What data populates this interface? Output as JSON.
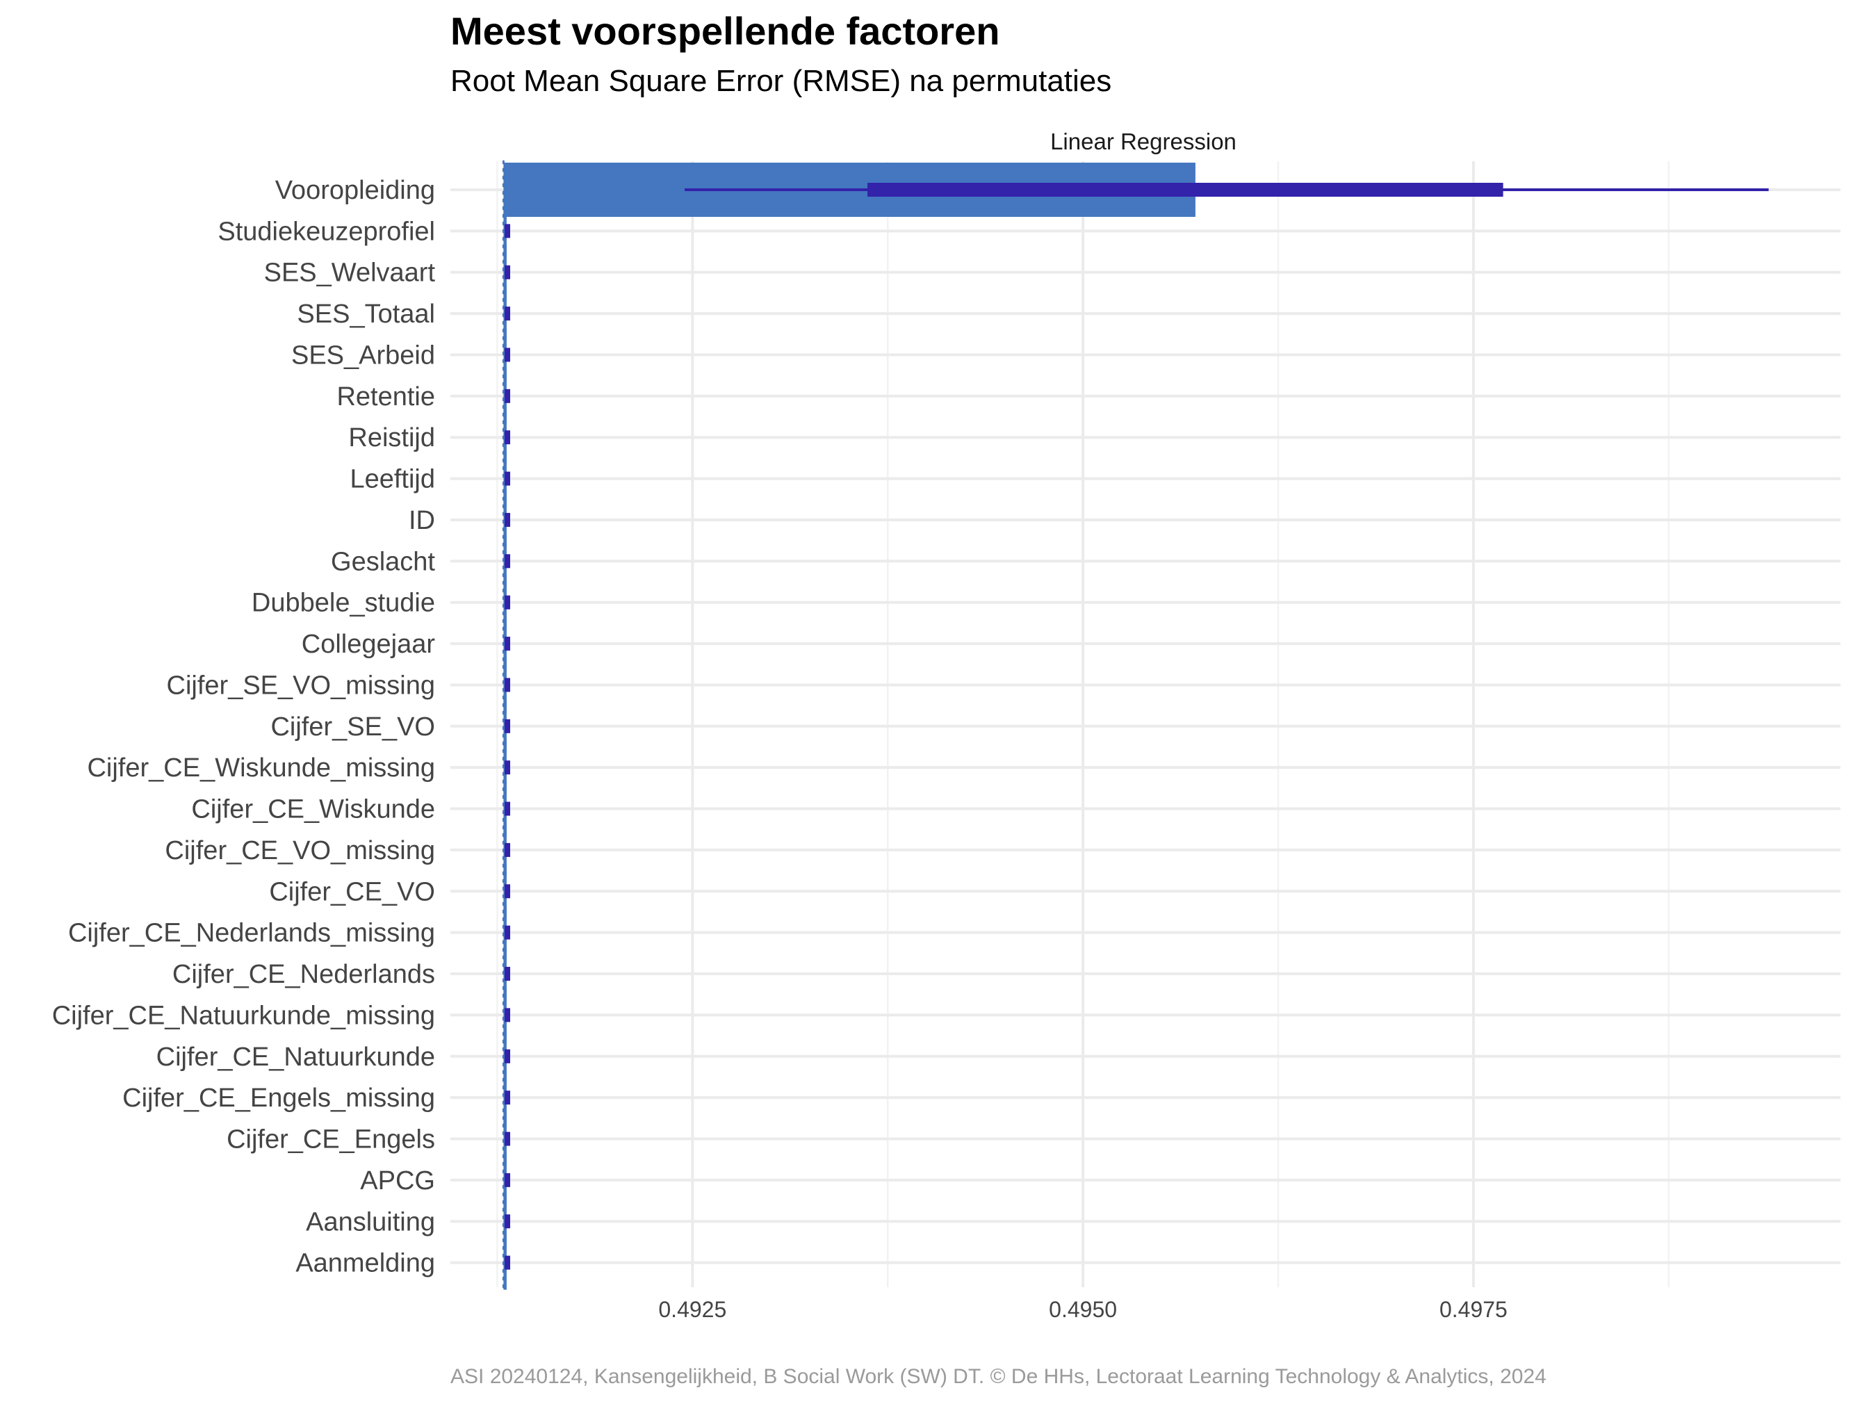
{
  "chart_data": {
    "type": "bar",
    "title": "Meest voorspellende factoren",
    "subtitle": "Root Mean Square Error (RMSE) na permutaties",
    "caption": "ASI 20240124, Kansengelijkheid, B Social Work (SW) DT. © De HHs, Lectoraat Learning Technology & Analytics, 2024",
    "facet": "Linear Regression",
    "xlim": [
      0.49095,
      0.49985
    ],
    "x_ticks": [
      0.4925,
      0.495,
      0.4975
    ],
    "x_tick_labels": [
      "0.4925",
      "0.4950",
      "0.4975"
    ],
    "baseline": 0.49129,
    "grid": true,
    "categories": [
      "Vooropleiding",
      "Studiekeuzeprofiel",
      "SES_Welvaart",
      "SES_Totaal",
      "SES_Arbeid",
      "Retentie",
      "Reistijd",
      "Leeftijd",
      "ID",
      "Geslacht",
      "Dubbele_studie",
      "Collegejaar",
      "Cijfer_SE_VO_missing",
      "Cijfer_SE_VO",
      "Cijfer_CE_Wiskunde_missing",
      "Cijfer_CE_Wiskunde",
      "Cijfer_CE_VO_missing",
      "Cijfer_CE_VO",
      "Cijfer_CE_Nederlands_missing",
      "Cijfer_CE_Nederlands",
      "Cijfer_CE_Natuurkunde_missing",
      "Cijfer_CE_Natuurkunde",
      "Cijfer_CE_Engels_missing",
      "Cijfer_CE_Engels",
      "APCG",
      "Aansluiting",
      "Aanmelding"
    ],
    "values": [
      0.49572,
      0.49131,
      0.49131,
      0.49131,
      0.49131,
      0.49131,
      0.49131,
      0.49131,
      0.49131,
      0.49131,
      0.49131,
      0.49131,
      0.49131,
      0.49131,
      0.49131,
      0.49131,
      0.49131,
      0.49131,
      0.49131,
      0.49131,
      0.49131,
      0.49131,
      0.49131,
      0.49131,
      0.49131,
      0.49131,
      0.49131
    ],
    "interval_outer": [
      [
        0.49245,
        0.49939
      ],
      [
        0.4913,
        0.49133
      ],
      [
        0.4913,
        0.49133
      ],
      [
        0.4913,
        0.49133
      ],
      [
        0.4913,
        0.49133
      ],
      [
        0.4913,
        0.49133
      ],
      [
        0.4913,
        0.49133
      ],
      [
        0.4913,
        0.49133
      ],
      [
        0.4913,
        0.49133
      ],
      [
        0.4913,
        0.49133
      ],
      [
        0.4913,
        0.49133
      ],
      [
        0.4913,
        0.49133
      ],
      [
        0.4913,
        0.49133
      ],
      [
        0.4913,
        0.49133
      ],
      [
        0.4913,
        0.49133
      ],
      [
        0.4913,
        0.49133
      ],
      [
        0.4913,
        0.49133
      ],
      [
        0.4913,
        0.49133
      ],
      [
        0.4913,
        0.49133
      ],
      [
        0.4913,
        0.49133
      ],
      [
        0.4913,
        0.49133
      ],
      [
        0.4913,
        0.49133
      ],
      [
        0.4913,
        0.49133
      ],
      [
        0.4913,
        0.49133
      ],
      [
        0.4913,
        0.49133
      ],
      [
        0.4913,
        0.49133
      ],
      [
        0.4913,
        0.49133
      ]
    ],
    "interval_inner": [
      [
        0.49362,
        0.49769
      ],
      [
        0.4913,
        0.49133
      ],
      [
        0.4913,
        0.49133
      ],
      [
        0.4913,
        0.49133
      ],
      [
        0.4913,
        0.49133
      ],
      [
        0.4913,
        0.49133
      ],
      [
        0.4913,
        0.49133
      ],
      [
        0.4913,
        0.49133
      ],
      [
        0.4913,
        0.49133
      ],
      [
        0.4913,
        0.49133
      ],
      [
        0.4913,
        0.49133
      ],
      [
        0.4913,
        0.49133
      ],
      [
        0.4913,
        0.49133
      ],
      [
        0.4913,
        0.49133
      ],
      [
        0.4913,
        0.49133
      ],
      [
        0.4913,
        0.49133
      ],
      [
        0.4913,
        0.49133
      ],
      [
        0.4913,
        0.49133
      ],
      [
        0.4913,
        0.49133
      ],
      [
        0.4913,
        0.49133
      ],
      [
        0.4913,
        0.49133
      ],
      [
        0.4913,
        0.49133
      ],
      [
        0.4913,
        0.49133
      ],
      [
        0.4913,
        0.49133
      ],
      [
        0.4913,
        0.49133
      ],
      [
        0.4913,
        0.49133
      ],
      [
        0.4913,
        0.49133
      ]
    ],
    "colors": {
      "bar": "#4477c0",
      "interval": "#3322aa",
      "baseline": "#4477c0",
      "grid": "#ebebeb"
    }
  }
}
